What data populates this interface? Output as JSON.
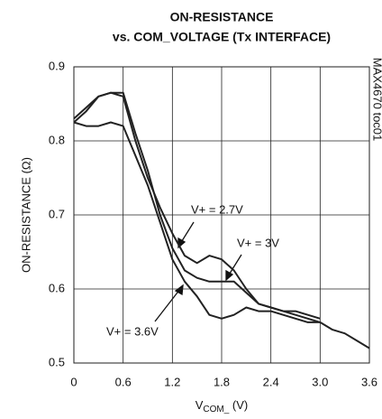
{
  "chart_data": {
    "type": "line",
    "title": [
      "ON-RESISTANCE",
      "vs. COM_VOLTAGE (Tx INTERFACE)"
    ],
    "y_label": "ON-RESISTANCE (Ω)",
    "x_label": {
      "main": "V",
      "sub": "COM_",
      "unit": " (V)"
    },
    "side_note": "MAX4670 toc01",
    "annotations": [
      "V+ = 2.7V",
      "V+ = 3V",
      "V+ = 3.6V"
    ],
    "x": [
      0,
      0.15,
      0.3,
      0.45,
      0.6,
      0.75,
      0.9,
      1.05,
      1.2,
      1.35,
      1.5,
      1.65,
      1.8,
      1.95,
      2.1,
      2.25,
      2.4,
      2.55,
      2.7,
      2.85,
      3.0,
      3.15,
      3.3,
      3.45,
      3.6
    ],
    "series": [
      {
        "name": "V+ = 2.7V",
        "color": "#222222",
        "values": [
          0.83,
          0.845,
          0.86,
          0.865,
          0.86,
          0.8,
          0.75,
          0.71,
          0.675,
          0.645,
          0.635,
          0.645,
          0.64,
          0.625,
          0.6,
          0.58,
          0.575,
          0.57,
          0.57,
          0.565,
          0.56,
          null,
          null,
          null,
          null
        ]
      },
      {
        "name": "V+ = 3V",
        "color": "#222222",
        "values": [
          0.825,
          0.84,
          0.86,
          0.865,
          0.865,
          0.81,
          0.76,
          0.7,
          0.655,
          0.625,
          0.615,
          0.61,
          0.61,
          0.61,
          0.595,
          0.58,
          0.575,
          0.57,
          0.565,
          0.56,
          0.555,
          null,
          null,
          null,
          null
        ]
      },
      {
        "name": "V+ = 3.6V",
        "color": "#222222",
        "values": [
          0.825,
          0.82,
          0.82,
          0.825,
          0.82,
          0.78,
          0.74,
          0.69,
          0.64,
          0.61,
          0.59,
          0.565,
          0.56,
          0.565,
          0.575,
          0.57,
          0.57,
          0.565,
          0.56,
          0.555,
          0.555,
          0.545,
          0.54,
          0.53,
          0.52
        ]
      }
    ],
    "xlim": [
      0,
      3.6
    ],
    "xticks": [
      {
        "value": 0,
        "label": "0"
      },
      0.6,
      1.2,
      1.8,
      2.4,
      {
        "value": 3,
        "label": "3.0"
      },
      3.6
    ],
    "ylim": [
      0.5,
      0.9
    ],
    "yticks": [
      0.5,
      0.6,
      0.7,
      0.8,
      0.9
    ],
    "grid": true
  }
}
